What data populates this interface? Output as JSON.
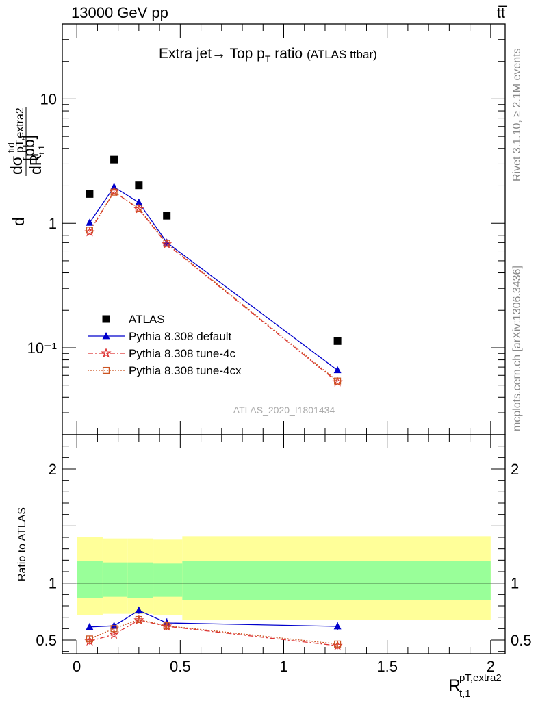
{
  "header": {
    "energy_label": "13000 GeV pp",
    "process_label": "tt̅"
  },
  "side_labels": {
    "rivet": "Rivet 3.1.10, ≥ 2.1M events",
    "mcplots": "mcplots.cern.ch [arXiv:1306.3436]"
  },
  "chart_data": [
    {
      "type": "scatter",
      "title": "Extra jet→ Top p",
      "title_sub": "T",
      "title_suffix": " ratio",
      "title_note": "(ATLAS ttbar)",
      "analysis_label": "ATLAS_2020_I1801434",
      "ylabel": "dσ/dR [pb]",
      "ylabel_parts": {
        "d": "d",
        "sigma": "σ",
        "sigma_sup": "fid",
        "sigma_sub": "pT,extra2",
        "dR": "dR",
        "dR_sub": "t,1",
        "unit": "[pb]"
      },
      "yscale": "log",
      "ylim": [
        0.02,
        40
      ],
      "xlim": [
        -0.07,
        2.07
      ],
      "y_tick_labels": [
        "10⁻¹",
        "1",
        "10"
      ],
      "x": [
        0.062,
        0.18,
        0.3,
        0.435,
        1.26
      ],
      "legend_position": "lower-left",
      "series": [
        {
          "name": "ATLAS",
          "marker": "square",
          "color": "#000000",
          "values": [
            1.72,
            3.25,
            2.02,
            1.15,
            0.113
          ]
        },
        {
          "name": "Pythia 8.308 default",
          "marker": "triangle",
          "color": "#0000cc",
          "values": [
            1.01,
            1.96,
            1.47,
            0.7,
            0.066
          ]
        },
        {
          "name": "Pythia 8.308 tune-4c",
          "marker": "star",
          "color": "#dd3333",
          "values": [
            0.85,
            1.8,
            1.3,
            0.68,
            0.053
          ]
        },
        {
          "name": "Pythia 8.308 tune-4cx",
          "marker": "open-square",
          "color": "#cc5522",
          "values": [
            0.88,
            1.78,
            1.32,
            0.69,
            0.054
          ]
        }
      ]
    },
    {
      "type": "scatter",
      "ylabel": "Ratio to ATLAS",
      "xlabel": "R",
      "xlabel_sup": "pT,extra2",
      "xlabel_sub": "t,1",
      "ylim": [
        0.38,
        2.3
      ],
      "xlim": [
        -0.07,
        2.07
      ],
      "x_tick_labels": [
        "0",
        "0.5",
        "1",
        "1.5",
        "2"
      ],
      "y_tick_labels": [
        "0.5",
        "1",
        "2"
      ],
      "bands": {
        "edges": [
          0.0,
          0.125,
          0.245,
          0.37,
          0.51,
          2.0
        ],
        "yellow_lo": [
          0.72,
          0.73,
          0.73,
          0.72,
          0.68
        ],
        "yellow_hi": [
          1.4,
          1.39,
          1.39,
          1.38,
          1.41
        ],
        "green_lo": [
          0.87,
          0.88,
          0.87,
          0.88,
          0.85
        ],
        "green_hi": [
          1.19,
          1.18,
          1.18,
          1.17,
          1.19
        ]
      },
      "x": [
        0.062,
        0.18,
        0.3,
        0.435,
        1.26
      ],
      "series": [
        {
          "name": "Pythia 8.308 default",
          "marker": "triangle",
          "color": "#0000cc",
          "values": [
            0.615,
            0.625,
            0.76,
            0.65,
            0.62
          ],
          "errors": [
            0.03,
            0.025,
            0.03,
            0.04,
            0.035
          ]
        },
        {
          "name": "Pythia 8.308 tune-4c",
          "marker": "star",
          "color": "#dd3333",
          "values": [
            0.49,
            0.55,
            0.675,
            0.62,
            0.45
          ],
          "errors": [
            0.03,
            0.025,
            0.02,
            0.03,
            0.03
          ]
        },
        {
          "name": "Pythia 8.308 tune-4cx",
          "marker": "open-square",
          "color": "#cc5522",
          "values": [
            0.51,
            0.6,
            0.68,
            0.625,
            0.465
          ],
          "errors": [
            0.025,
            0.025,
            0.02,
            0.03,
            0.025
          ]
        }
      ]
    }
  ]
}
